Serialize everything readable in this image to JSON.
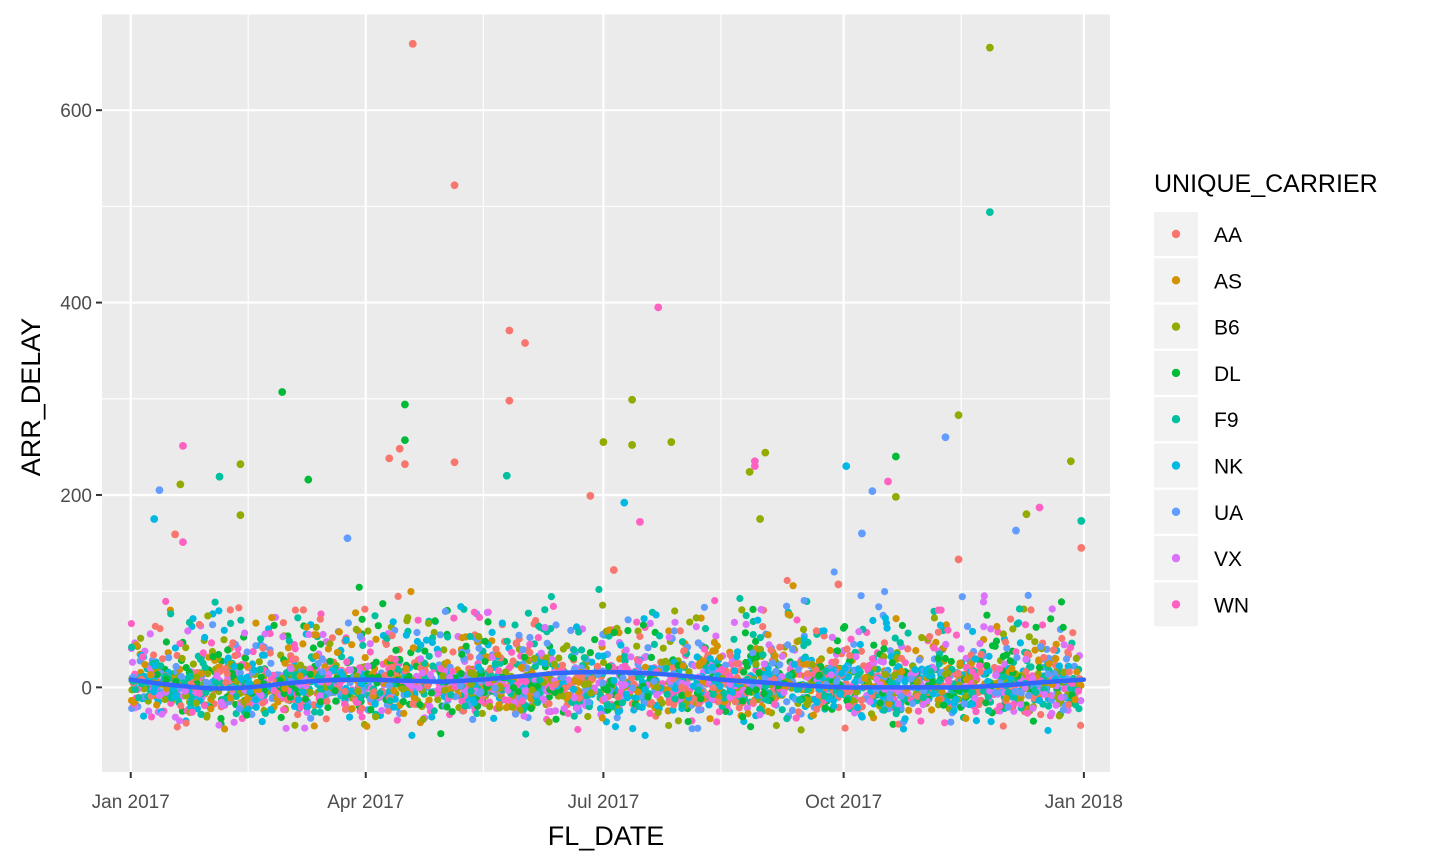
{
  "chart_data": {
    "type": "scatter",
    "xlabel": "FL_DATE",
    "ylabel": "ARR_DELAY",
    "x_type": "date",
    "xlim": [
      "2016-12-21",
      "2018-01-11"
    ],
    "ylim": [
      -88,
      700
    ],
    "x_ticks": [
      {
        "value": "2017-01-01",
        "label": "Jan 2017"
      },
      {
        "value": "2017-04-01",
        "label": "Apr 2017"
      },
      {
        "value": "2017-07-01",
        "label": "Jul 2017"
      },
      {
        "value": "2017-10-01",
        "label": "Oct 2017"
      },
      {
        "value": "2018-01-01",
        "label": "Jan 2018"
      }
    ],
    "x_minor_ticks": [
      "2017-02-15",
      "2017-05-16",
      "2017-08-15",
      "2017-11-15"
    ],
    "y_ticks": [
      0,
      200,
      400,
      600
    ],
    "y_minor_ticks": [
      -100,
      100,
      300,
      500,
      700
    ],
    "grid": true,
    "panel_background": "#ebebeb",
    "legend": {
      "title": "UNIQUE_CARRIER",
      "position": "right",
      "entries": [
        {
          "label": "AA",
          "color": "#F8766D"
        },
        {
          "label": "AS",
          "color": "#D39200"
        },
        {
          "label": "B6",
          "color": "#93AA00"
        },
        {
          "label": "DL",
          "color": "#00BA38"
        },
        {
          "label": "F9",
          "color": "#00C19F"
        },
        {
          "label": "NK",
          "color": "#00B9E3"
        },
        {
          "label": "UA",
          "color": "#619CFF"
        },
        {
          "label": "VX",
          "color": "#DB72FB"
        },
        {
          "label": "WN",
          "color": "#FF61C3"
        }
      ]
    },
    "smooth_line": {
      "color": "#3366FF",
      "points": [
        {
          "x": "2017-01-01",
          "y": 8
        },
        {
          "x": "2017-01-15",
          "y": 3
        },
        {
          "x": "2017-02-01",
          "y": -1
        },
        {
          "x": "2017-02-15",
          "y": 0
        },
        {
          "x": "2017-03-01",
          "y": 4
        },
        {
          "x": "2017-03-15",
          "y": 7
        },
        {
          "x": "2017-04-01",
          "y": 8
        },
        {
          "x": "2017-04-15",
          "y": 7
        },
        {
          "x": "2017-05-01",
          "y": 6
        },
        {
          "x": "2017-05-15",
          "y": 8
        },
        {
          "x": "2017-06-01",
          "y": 12
        },
        {
          "x": "2017-06-15",
          "y": 15
        },
        {
          "x": "2017-07-01",
          "y": 16
        },
        {
          "x": "2017-07-15",
          "y": 15
        },
        {
          "x": "2017-08-01",
          "y": 12
        },
        {
          "x": "2017-08-15",
          "y": 8
        },
        {
          "x": "2017-09-01",
          "y": 5
        },
        {
          "x": "2017-09-15",
          "y": 2
        },
        {
          "x": "2017-10-01",
          "y": 0
        },
        {
          "x": "2017-10-15",
          "y": 0
        },
        {
          "x": "2017-11-01",
          "y": 0
        },
        {
          "x": "2017-11-15",
          "y": 0
        },
        {
          "x": "2017-12-01",
          "y": 2
        },
        {
          "x": "2017-12-15",
          "y": 5
        },
        {
          "x": "2018-01-01",
          "y": 8
        }
      ]
    },
    "notable_points": [
      {
        "series": "AA",
        "x": "2017-04-19",
        "y": 669
      },
      {
        "series": "AA",
        "x": "2017-05-05",
        "y": 522
      },
      {
        "series": "AA",
        "x": "2017-05-26",
        "y": 371
      },
      {
        "series": "AA",
        "x": "2017-06-01",
        "y": 358
      },
      {
        "series": "AA",
        "x": "2017-05-26",
        "y": 298
      },
      {
        "series": "AA",
        "x": "2017-04-14",
        "y": 248
      },
      {
        "series": "AA",
        "x": "2017-04-10",
        "y": 238
      },
      {
        "series": "AA",
        "x": "2017-05-05",
        "y": 234
      },
      {
        "series": "AA",
        "x": "2017-04-16",
        "y": 232
      },
      {
        "series": "AA",
        "x": "2017-06-26",
        "y": 199
      },
      {
        "series": "AA",
        "x": "2017-01-18",
        "y": 159
      },
      {
        "series": "AA",
        "x": "2017-12-31",
        "y": 145
      },
      {
        "series": "AA",
        "x": "2017-11-14",
        "y": 133
      },
      {
        "series": "AA",
        "x": "2017-07-05",
        "y": 122
      },
      {
        "series": "AA",
        "x": "2017-09-29",
        "y": 107
      },
      {
        "series": "B6",
        "x": "2017-11-26",
        "y": 665
      },
      {
        "series": "B6",
        "x": "2017-07-12",
        "y": 299
      },
      {
        "series": "B6",
        "x": "2017-11-14",
        "y": 283
      },
      {
        "series": "B6",
        "x": "2017-07-12",
        "y": 252
      },
      {
        "series": "B6",
        "x": "2017-07-27",
        "y": 255
      },
      {
        "series": "B6",
        "x": "2017-07-01",
        "y": 255
      },
      {
        "series": "B6",
        "x": "2017-09-01",
        "y": 244
      },
      {
        "series": "B6",
        "x": "2017-12-27",
        "y": 235
      },
      {
        "series": "B6",
        "x": "2017-02-12",
        "y": 232
      },
      {
        "series": "B6",
        "x": "2017-08-26",
        "y": 224
      },
      {
        "series": "B6",
        "x": "2017-01-20",
        "y": 211
      },
      {
        "series": "B6",
        "x": "2017-10-21",
        "y": 198
      },
      {
        "series": "B6",
        "x": "2017-02-12",
        "y": 179
      },
      {
        "series": "B6",
        "x": "2017-08-30",
        "y": 175
      },
      {
        "series": "B6",
        "x": "2017-12-10",
        "y": 180
      },
      {
        "series": "DL",
        "x": "2017-04-16",
        "y": 294
      },
      {
        "series": "DL",
        "x": "2017-04-16",
        "y": 257
      },
      {
        "series": "DL",
        "x": "2017-02-28",
        "y": 307
      },
      {
        "series": "DL",
        "x": "2017-10-21",
        "y": 240
      },
      {
        "series": "DL",
        "x": "2017-03-10",
        "y": 216
      },
      {
        "series": "F9",
        "x": "2017-11-26",
        "y": 494
      },
      {
        "series": "F9",
        "x": "2017-05-25",
        "y": 220
      },
      {
        "series": "F9",
        "x": "2017-02-04",
        "y": 219
      },
      {
        "series": "F9",
        "x": "2017-12-31",
        "y": 173
      },
      {
        "series": "NK",
        "x": "2017-10-02",
        "y": 230
      },
      {
        "series": "NK",
        "x": "2017-07-09",
        "y": 192
      },
      {
        "series": "NK",
        "x": "2017-01-10",
        "y": 175
      },
      {
        "series": "UA",
        "x": "2017-11-09",
        "y": 260
      },
      {
        "series": "UA",
        "x": "2017-01-12",
        "y": 205
      },
      {
        "series": "UA",
        "x": "2017-10-12",
        "y": 204
      },
      {
        "series": "UA",
        "x": "2017-10-08",
        "y": 160
      },
      {
        "series": "UA",
        "x": "2017-12-06",
        "y": 163
      },
      {
        "series": "UA",
        "x": "2017-03-25",
        "y": 155
      },
      {
        "series": "WN",
        "x": "2017-07-22",
        "y": 395
      },
      {
        "series": "WN",
        "x": "2017-01-21",
        "y": 251
      },
      {
        "series": "WN",
        "x": "2017-08-28",
        "y": 235
      },
      {
        "series": "WN",
        "x": "2017-08-28",
        "y": 230
      },
      {
        "series": "WN",
        "x": "2017-10-18",
        "y": 214
      },
      {
        "series": "WN",
        "x": "2017-12-15",
        "y": 187
      },
      {
        "series": "WN",
        "x": "2017-07-15",
        "y": 172
      },
      {
        "series": "WN",
        "x": "2017-01-21",
        "y": 151
      }
    ],
    "bulk_distribution": {
      "x_range": [
        "2017-01-01",
        "2017-12-31"
      ],
      "y_center": 0,
      "y_spread": [
        -50,
        130
      ],
      "point_count": 3600
    }
  }
}
